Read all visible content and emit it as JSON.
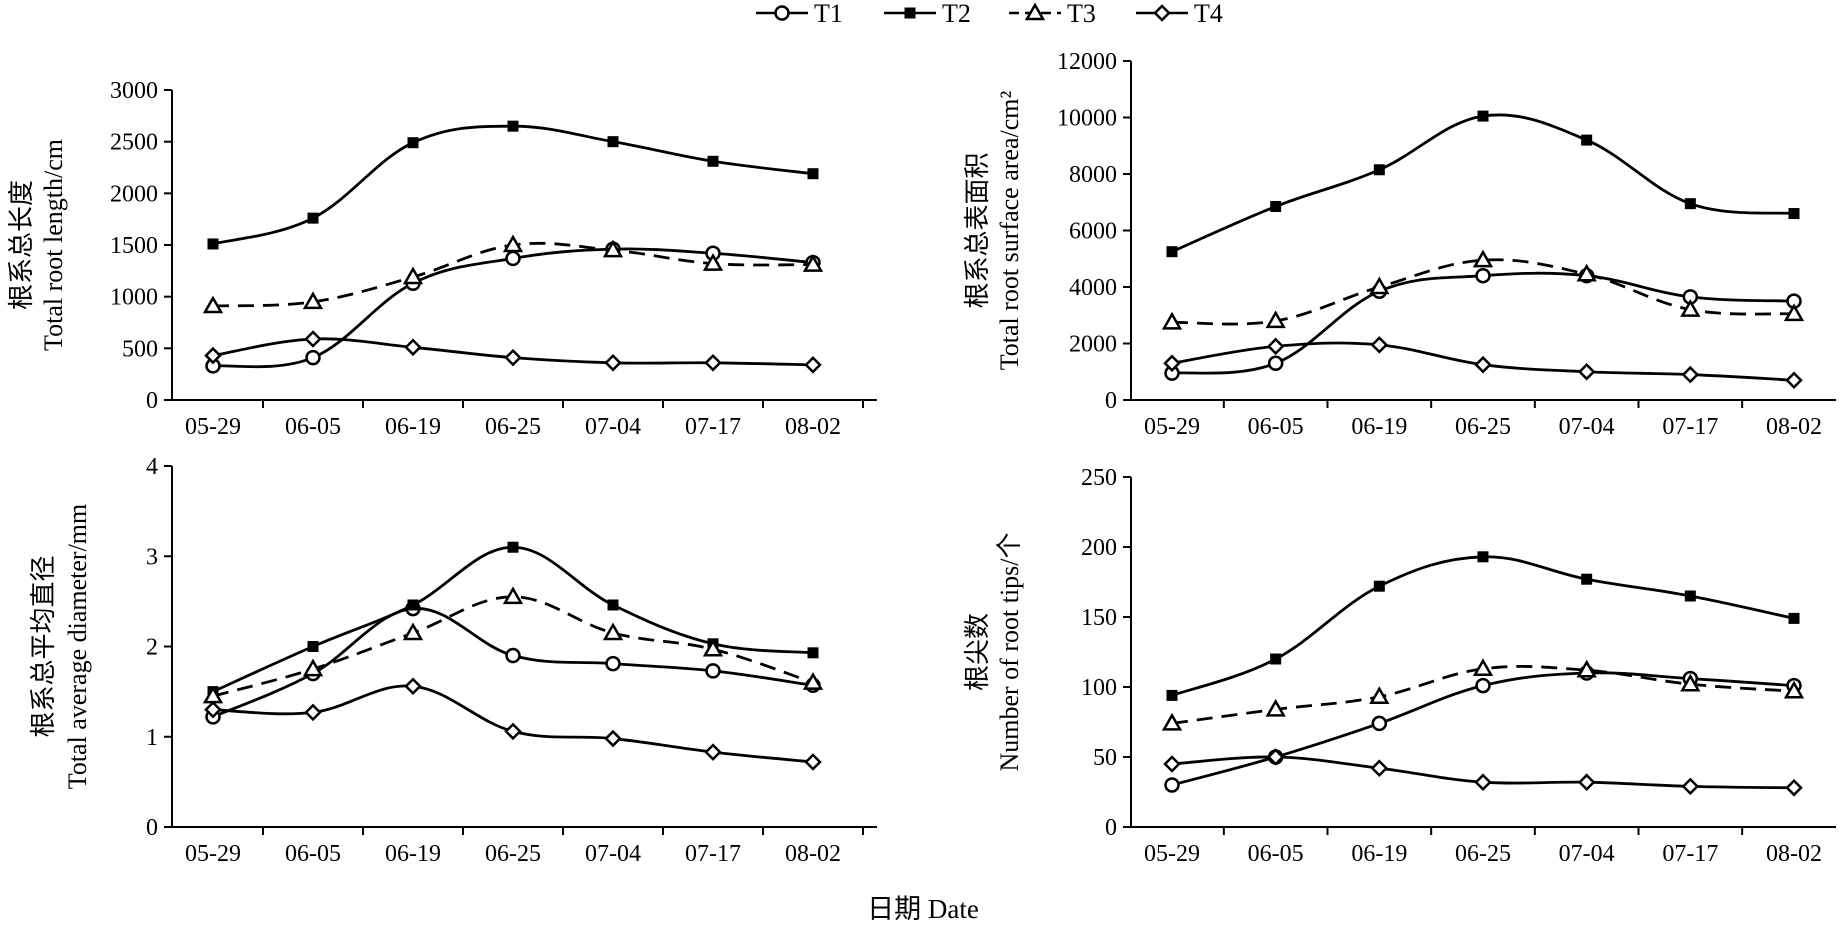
{
  "figure": {
    "x_title": "日期 Date",
    "legend": [
      {
        "name": "T1",
        "marker": "circle",
        "dash": "solid"
      },
      {
        "name": "T2",
        "marker": "square",
        "dash": "solid"
      },
      {
        "name": "T3",
        "marker": "triangle",
        "dash": "dashed"
      },
      {
        "name": "T4",
        "marker": "diamond",
        "dash": "solid"
      }
    ]
  },
  "chart_data": [
    {
      "type": "line",
      "position": "top-left",
      "ylabel_cn": "根系总长度",
      "ylabel_en": "Total root length/cm",
      "categories": [
        "05-29",
        "06-05",
        "06-19",
        "06-25",
        "07-04",
        "07-17",
        "08-02"
      ],
      "ylim": [
        0,
        3000
      ],
      "yticks": [
        0,
        500,
        1000,
        1500,
        2000,
        2500,
        3000
      ],
      "series": [
        {
          "name": "T1",
          "values": [
            330,
            410,
            1130,
            1370,
            1460,
            1420,
            1330
          ]
        },
        {
          "name": "T2",
          "values": [
            1510,
            1760,
            2490,
            2650,
            2500,
            2310,
            2190
          ]
        },
        {
          "name": "T3",
          "values": [
            910,
            950,
            1190,
            1500,
            1450,
            1320,
            1310
          ]
        },
        {
          "name": "T4",
          "values": [
            430,
            590,
            510,
            410,
            360,
            360,
            340
          ]
        }
      ]
    },
    {
      "type": "line",
      "position": "top-right",
      "ylabel_cn": "根系总表面积",
      "ylabel_en": "Total root surface area/cm²",
      "categories": [
        "05-29",
        "06-05",
        "06-19",
        "06-25",
        "07-04",
        "07-17",
        "08-02"
      ],
      "ylim": [
        0,
        12000
      ],
      "yticks": [
        0,
        2000,
        4000,
        6000,
        8000,
        10000,
        12000
      ],
      "series": [
        {
          "name": "T1",
          "values": [
            950,
            1300,
            3850,
            4400,
            4400,
            3650,
            3500
          ]
        },
        {
          "name": "T2",
          "values": [
            5250,
            6850,
            8150,
            10050,
            9200,
            6950,
            6600
          ]
        },
        {
          "name": "T3",
          "values": [
            2750,
            2800,
            4000,
            4950,
            4450,
            3200,
            3050
          ]
        },
        {
          "name": "T4",
          "values": [
            1300,
            1900,
            1950,
            1250,
            1000,
            900,
            700
          ]
        }
      ]
    },
    {
      "type": "line",
      "position": "bottom-left",
      "ylabel_cn": "根系总平均直径",
      "ylabel_en": "Total average diameter/mm",
      "categories": [
        "05-29",
        "06-05",
        "06-19",
        "06-25",
        "07-04",
        "07-17",
        "08-02"
      ],
      "ylim": [
        0,
        4
      ],
      "yticks": [
        0,
        1,
        2,
        3,
        4
      ],
      "series": [
        {
          "name": "T1",
          "values": [
            1.22,
            1.7,
            2.42,
            1.9,
            1.81,
            1.73,
            1.57
          ]
        },
        {
          "name": "T2",
          "values": [
            1.5,
            2.0,
            2.46,
            3.1,
            2.46,
            2.03,
            1.93
          ]
        },
        {
          "name": "T3",
          "values": [
            1.45,
            1.75,
            2.15,
            2.55,
            2.15,
            1.97,
            1.6
          ]
        },
        {
          "name": "T4",
          "values": [
            1.3,
            1.27,
            1.56,
            1.06,
            0.98,
            0.83,
            0.72
          ]
        }
      ]
    },
    {
      "type": "line",
      "position": "bottom-right",
      "ylabel_cn": "根尖数",
      "ylabel_en": "Number of root tips/个",
      "categories": [
        "05-29",
        "06-05",
        "06-19",
        "06-25",
        "07-04",
        "07-17",
        "08-02"
      ],
      "ylim": [
        0,
        250
      ],
      "yticks": [
        0,
        50,
        100,
        150,
        200,
        250
      ],
      "series": [
        {
          "name": "T1",
          "values": [
            30,
            50,
            74,
            101,
            110,
            106,
            101
          ]
        },
        {
          "name": "T2",
          "values": [
            94,
            120,
            172,
            193,
            177,
            165,
            149
          ]
        },
        {
          "name": "T3",
          "values": [
            74,
            84,
            93,
            113,
            112,
            102,
            97
          ]
        },
        {
          "name": "T4",
          "values": [
            45,
            50,
            42,
            32,
            32,
            29,
            28
          ]
        }
      ]
    }
  ]
}
